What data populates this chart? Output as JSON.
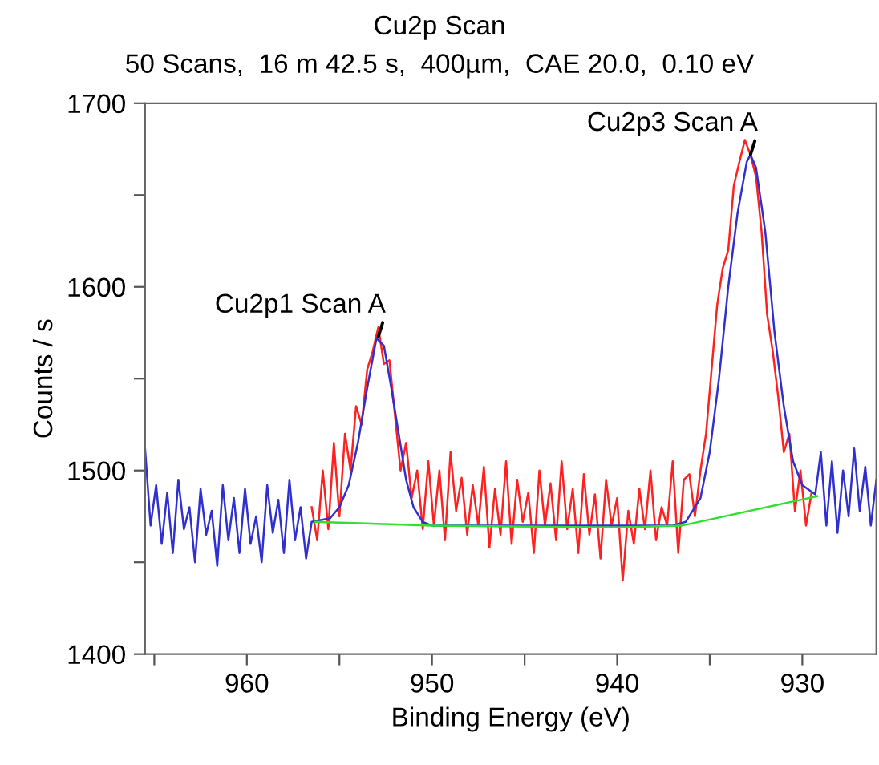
{
  "chart_data": {
    "type": "line",
    "title": "Cu2p Scan",
    "subtitle": "50 Scans,  16 m 42.5 s,  400µm,  CAE 20.0,  0.10 eV",
    "xlabel": "Binding Energy (eV)",
    "ylabel": "Counts / s",
    "xlim": [
      965.5,
      926
    ],
    "ylim": [
      1400,
      1700
    ],
    "xticks": [
      {
        "value": 965,
        "label": null
      },
      960,
      {
        "value": 955,
        "label": null
      },
      950,
      {
        "value": 945,
        "label": null
      },
      940,
      {
        "value": 935,
        "label": null
      },
      930
    ],
    "yticks": [
      1400,
      {
        "value": 1450,
        "label": null
      },
      1500,
      {
        "value": 1550,
        "label": null
      },
      1600,
      {
        "value": 1650,
        "label": null
      },
      1700
    ],
    "grid": false,
    "legend": false,
    "series": [
      {
        "color": "#ff2020",
        "x": [
          956.5,
          956.2,
          955.9,
          955.6,
          955.3,
          955.0,
          954.7,
          954.4,
          954.1,
          953.8,
          953.5,
          953.2,
          952.9,
          952.6,
          952.3,
          952.0,
          951.7,
          951.4,
          951.1,
          950.8,
          950.5,
          950.2,
          949.9,
          949.6,
          949.3,
          949.0,
          948.7,
          948.4,
          948.1,
          947.8,
          947.5,
          947.2,
          946.9,
          946.6,
          946.3,
          946.0,
          945.7,
          945.4,
          945.1,
          944.8,
          944.5,
          944.2,
          943.9,
          943.6,
          943.3,
          943.0,
          942.7,
          942.4,
          942.1,
          941.8,
          941.5,
          941.2,
          940.9,
          940.6,
          940.3,
          940.0,
          939.7,
          939.4,
          939.1,
          938.8,
          938.5,
          938.2,
          937.9,
          937.6,
          937.3,
          937.0,
          936.7,
          936.4,
          936.1,
          935.8,
          935.5,
          935.2,
          934.9,
          934.6,
          934.3,
          934.0,
          933.7,
          933.4,
          933.1,
          932.8,
          932.5,
          932.2,
          931.9,
          931.6,
          931.3,
          931.0,
          930.7,
          930.4,
          930.1,
          929.8,
          929.5
        ],
        "values": [
          1480,
          1462,
          1500,
          1468,
          1515,
          1475,
          1520,
          1500,
          1535,
          1525,
          1555,
          1565,
          1578,
          1558,
          1560,
          1530,
          1500,
          1515,
          1485,
          1500,
          1468,
          1505,
          1470,
          1500,
          1462,
          1510,
          1478,
          1496,
          1465,
          1492,
          1470,
          1502,
          1458,
          1490,
          1465,
          1505,
          1460,
          1495,
          1472,
          1488,
          1455,
          1500,
          1470,
          1493,
          1462,
          1505,
          1468,
          1490,
          1455,
          1498,
          1465,
          1487,
          1452,
          1495,
          1470,
          1485,
          1440,
          1478,
          1460,
          1490,
          1468,
          1500,
          1462,
          1480,
          1470,
          1505,
          1455,
          1495,
          1498,
          1475,
          1500,
          1520,
          1555,
          1590,
          1610,
          1620,
          1655,
          1668,
          1680,
          1672,
          1660,
          1630,
          1585,
          1565,
          1540,
          1510,
          1520,
          1478,
          1500,
          1470,
          1488
        ]
      },
      {
        "color": "#3030d0",
        "x": [
          965.5,
          965.2,
          964.9,
          964.6,
          964.3,
          964.0,
          963.7,
          963.4,
          963.1,
          962.8,
          962.5,
          962.2,
          961.9,
          961.6,
          961.3,
          961.0,
          960.7,
          960.4,
          960.1,
          959.8,
          959.5,
          959.2,
          958.9,
          958.6,
          958.3,
          958.0,
          957.7,
          957.4,
          957.1,
          956.8,
          956.5,
          955.5,
          955.0,
          954.5,
          954.0,
          953.5,
          953.0,
          952.6,
          952.2,
          951.8,
          951.4,
          951.0,
          950.5,
          950.0,
          945.0,
          940.0,
          937.0,
          936.3,
          935.5,
          935.0,
          934.5,
          934.0,
          933.5,
          933.0,
          932.8,
          932.5,
          932.0,
          931.5,
          931.0,
          930.5,
          930.0,
          929.3,
          929.0,
          928.7,
          928.4,
          928.1,
          927.8,
          927.5,
          927.2,
          926.9,
          926.6,
          926.3,
          926.0
        ],
        "values": [
          1512,
          1470,
          1492,
          1460,
          1488,
          1455,
          1495,
          1468,
          1480,
          1450,
          1490,
          1465,
          1478,
          1448,
          1492,
          1462,
          1485,
          1455,
          1490,
          1460,
          1475,
          1450,
          1492,
          1466,
          1484,
          1455,
          1495,
          1462,
          1480,
          1452,
          1472,
          1474,
          1480,
          1492,
          1515,
          1545,
          1572,
          1568,
          1545,
          1520,
          1495,
          1480,
          1472,
          1470,
          1470,
          1470,
          1470,
          1472,
          1485,
          1510,
          1550,
          1600,
          1640,
          1668,
          1672,
          1665,
          1630,
          1575,
          1535,
          1505,
          1492,
          1487,
          1510,
          1470,
          1505,
          1466,
          1500,
          1475,
          1512,
          1478,
          1502,
          1470,
          1495
        ]
      },
      {
        "color": "#30e030",
        "x": [
          956.3,
          950.0,
          940.0,
          936.5,
          929.2
        ],
        "values": [
          1472,
          1470,
          1469,
          1470,
          1486
        ]
      }
    ],
    "annotations": [
      {
        "text": "Cu2p1 Scan A",
        "x": 952.9,
        "y": 1573
      },
      {
        "text": "Cu2p3 Scan A",
        "x": 932.8,
        "y": 1672
      }
    ]
  }
}
